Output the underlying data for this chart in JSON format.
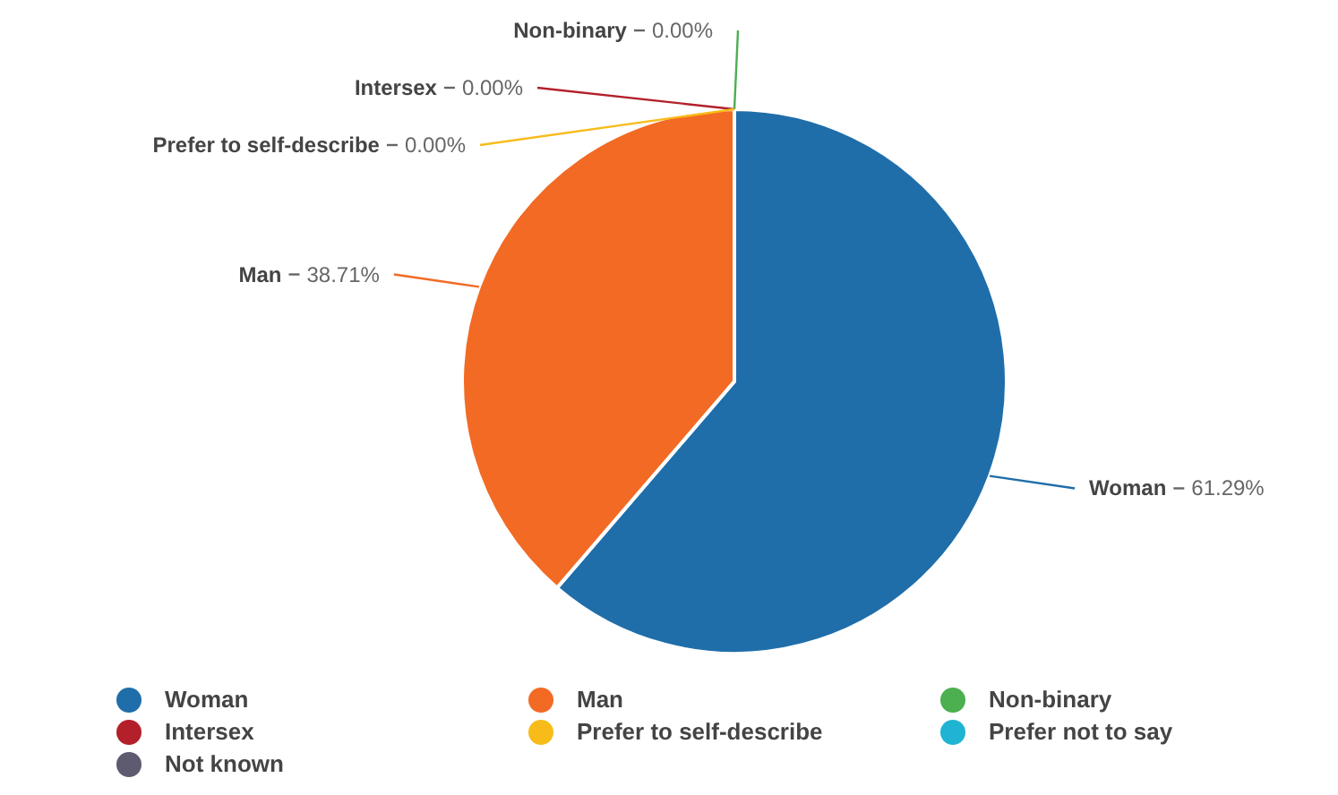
{
  "chart_data": {
    "type": "pie",
    "categories": [
      "Woman",
      "Man",
      "Non-binary",
      "Intersex",
      "Prefer to self-describe",
      "Prefer not to say",
      "Not known"
    ],
    "values": [
      61.29,
      38.71,
      0,
      0,
      0,
      0,
      0
    ],
    "value_labels": [
      "61.29%",
      "38.71%",
      "0.00%",
      "0.00%",
      "0.00%",
      null,
      null
    ],
    "colors": [
      "#1f6eaa",
      "#f26a24",
      "#4caf50",
      "#b3202a",
      "#f7bc1a",
      "#1fb4d2",
      "#5e5a70"
    ],
    "legend": "bottom"
  }
}
